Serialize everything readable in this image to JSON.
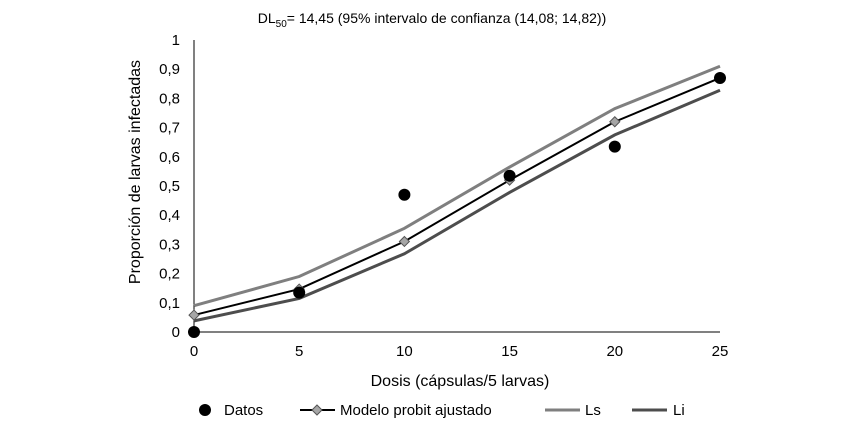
{
  "chart_data": {
    "type": "line",
    "title_main": "DL",
    "title_sub": "50",
    "title_rest": "= 14,45 (95% intervalo de confianza (14,08; 14,82))",
    "xlabel": "Dosis (cápsulas/5 larvas)",
    "ylabel": "Proporción de larvas infectadas",
    "xlim": [
      0,
      25
    ],
    "ylim": [
      0,
      1
    ],
    "xticks": [
      0,
      5,
      10,
      15,
      20,
      25
    ],
    "xtick_labels": [
      "0",
      "5",
      "10",
      "15",
      "20",
      "25"
    ],
    "yticks": [
      0,
      0.1,
      0.2,
      0.3,
      0.4,
      0.5,
      0.6,
      0.7,
      0.8,
      0.9,
      1
    ],
    "ytick_labels": [
      "0",
      "0,1",
      "0,2",
      "0,3",
      "0,4",
      "0,5",
      "0,6",
      "0,7",
      "0,8",
      "0,9",
      "1"
    ],
    "grid": false,
    "legend_position": "bottom",
    "series": [
      {
        "name": "Datos",
        "kind": "scatter",
        "marker": "circle",
        "color": "#000000",
        "x": [
          0,
          5,
          10,
          15,
          20,
          25
        ],
        "y": [
          0.0,
          0.135,
          0.47,
          0.535,
          0.635,
          0.87
        ]
      },
      {
        "name": "Modelo probit ajustado",
        "kind": "line",
        "marker": "diamond",
        "color": "#000000",
        "marker_fill": "#a6a6a6",
        "x": [
          0,
          5,
          10,
          15,
          20,
          25
        ],
        "y": [
          0.058,
          0.147,
          0.31,
          0.52,
          0.72,
          0.87
        ]
      },
      {
        "name": "Ls",
        "kind": "line",
        "marker": "none",
        "color": "#7f7f7f",
        "x": [
          0,
          5,
          10,
          15,
          20,
          25
        ],
        "y": [
          0.09,
          0.19,
          0.355,
          0.565,
          0.765,
          0.91
        ]
      },
      {
        "name": "Li",
        "kind": "line",
        "marker": "none",
        "color": "#4d4d4d",
        "x": [
          0,
          5,
          10,
          15,
          20,
          25
        ],
        "y": [
          0.038,
          0.115,
          0.268,
          0.478,
          0.675,
          0.828
        ]
      }
    ]
  }
}
